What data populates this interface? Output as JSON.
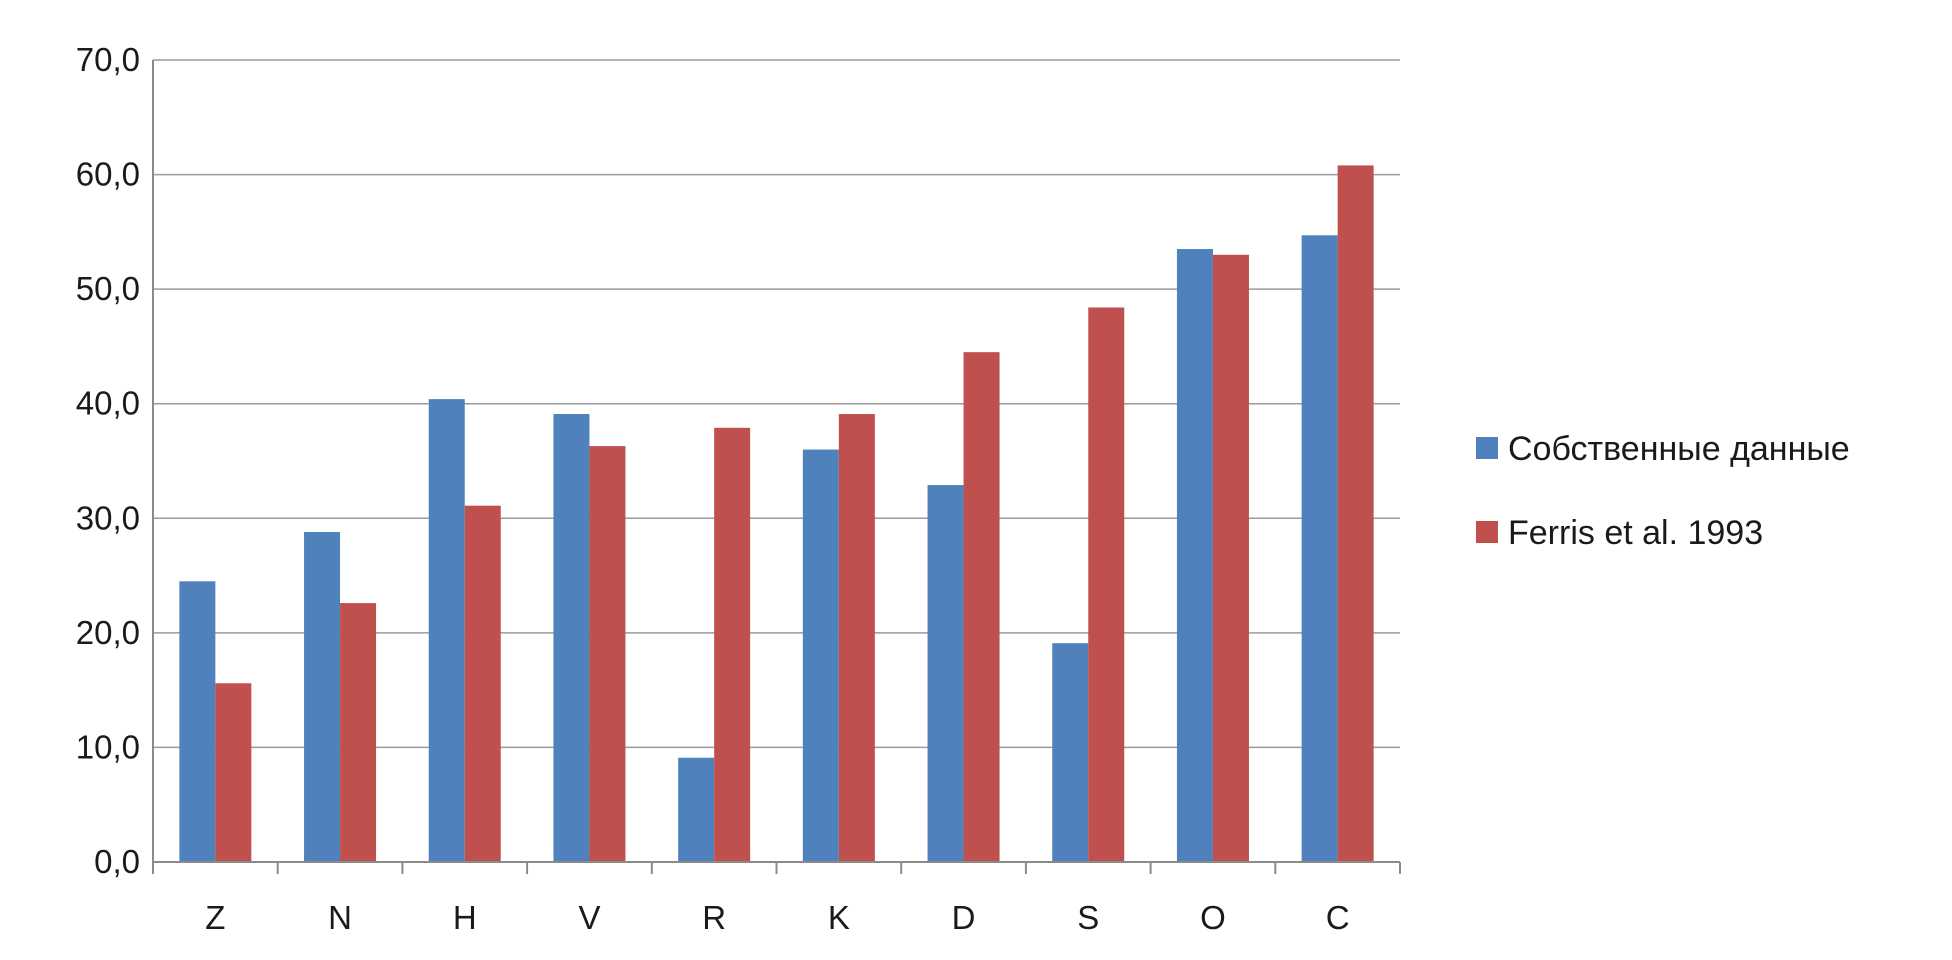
{
  "chart_data": {
    "type": "bar",
    "categories": [
      "Z",
      "N",
      "H",
      "V",
      "R",
      "K",
      "D",
      "S",
      "O",
      "C"
    ],
    "series": [
      {
        "name": "Собственные данные",
        "color": "#4f81bd",
        "values": [
          24.5,
          28.8,
          40.4,
          39.1,
          9.1,
          36.0,
          32.9,
          19.1,
          53.5,
          54.7
        ]
      },
      {
        "name": "Ferris et al. 1993",
        "color": "#c0504d",
        "values": [
          15.6,
          22.6,
          31.1,
          36.3,
          37.9,
          39.1,
          44.5,
          48.4,
          53.0,
          60.8
        ]
      }
    ],
    "ylim": [
      0,
      70
    ],
    "yticks": [
      "0,0",
      "10,0",
      "20,0",
      "30,0",
      "40,0",
      "50,0",
      "60,0",
      "70,0"
    ],
    "grid": true,
    "legend_position": "right"
  }
}
